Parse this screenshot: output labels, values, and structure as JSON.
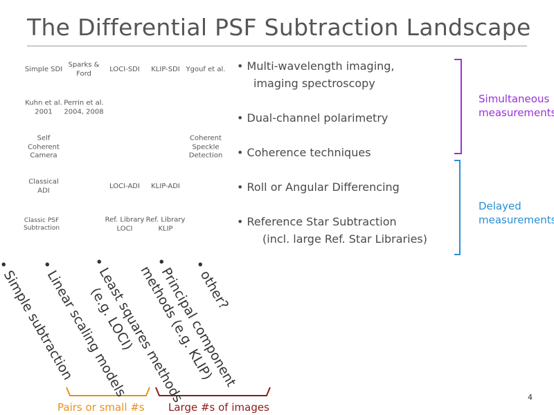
{
  "slide": {
    "title": "The Differential PSF Subtraction Landscape",
    "page_number": "4"
  },
  "grid": [
    {
      "text": "Simple SDI"
    },
    {
      "text": "Sparks & Ford"
    },
    {
      "text": "LOCI-SDI"
    },
    {
      "text": "KLIP-SDI"
    },
    {
      "text": "Ygouf et al."
    },
    {
      "text": "Kuhn et al. 2001"
    },
    {
      "text": "Perrin et al. 2004, 2008"
    },
    {
      "text": "Self Coherent Camera"
    },
    {
      "text": "Coherent Speckle Detection"
    },
    {
      "text": "Classical ADI"
    },
    {
      "text": "LOCI-ADI"
    },
    {
      "text": "KLIP-ADI"
    },
    {
      "text": "Classic PSF Subtraction"
    },
    {
      "text": "Ref. Library LOCI"
    },
    {
      "text": "Ref. Library KLIP"
    }
  ],
  "bullets": {
    "b1_line1": "• Multi-wavelength imaging,",
    "b1_line2": "imaging spectroscopy",
    "b2": "• Dual-channel polarimetry",
    "b3": "• Coherence techniques",
    "b4": "• Roll or Angular Differencing",
    "b5_line1": "• Reference Star Subtraction",
    "b5_line2": "(incl. large Ref. Star Libraries)"
  },
  "braces": {
    "simultaneous_line1": "Simultaneous",
    "simultaneous_line2": "measurements",
    "delayed_line1": "Delayed",
    "delayed_line2": "measurements"
  },
  "methods": {
    "m1": "• Simple subtraction",
    "m2": "• Linear scaling models",
    "m3_line1": "• Least squares methods",
    "m3_line2": "(e.g. LOCI)",
    "m4_line1": "• Principal component",
    "m4_line2": "methods (e.g. KLIP)",
    "m5": "• other?"
  },
  "groups": {
    "small": "Pairs or small #s",
    "large": "Large #s of images"
  },
  "colors": {
    "simultaneous": "#9b30d9",
    "delayed": "#2a8fd0",
    "small": "#e8901a",
    "large": "#8b1a1a"
  }
}
